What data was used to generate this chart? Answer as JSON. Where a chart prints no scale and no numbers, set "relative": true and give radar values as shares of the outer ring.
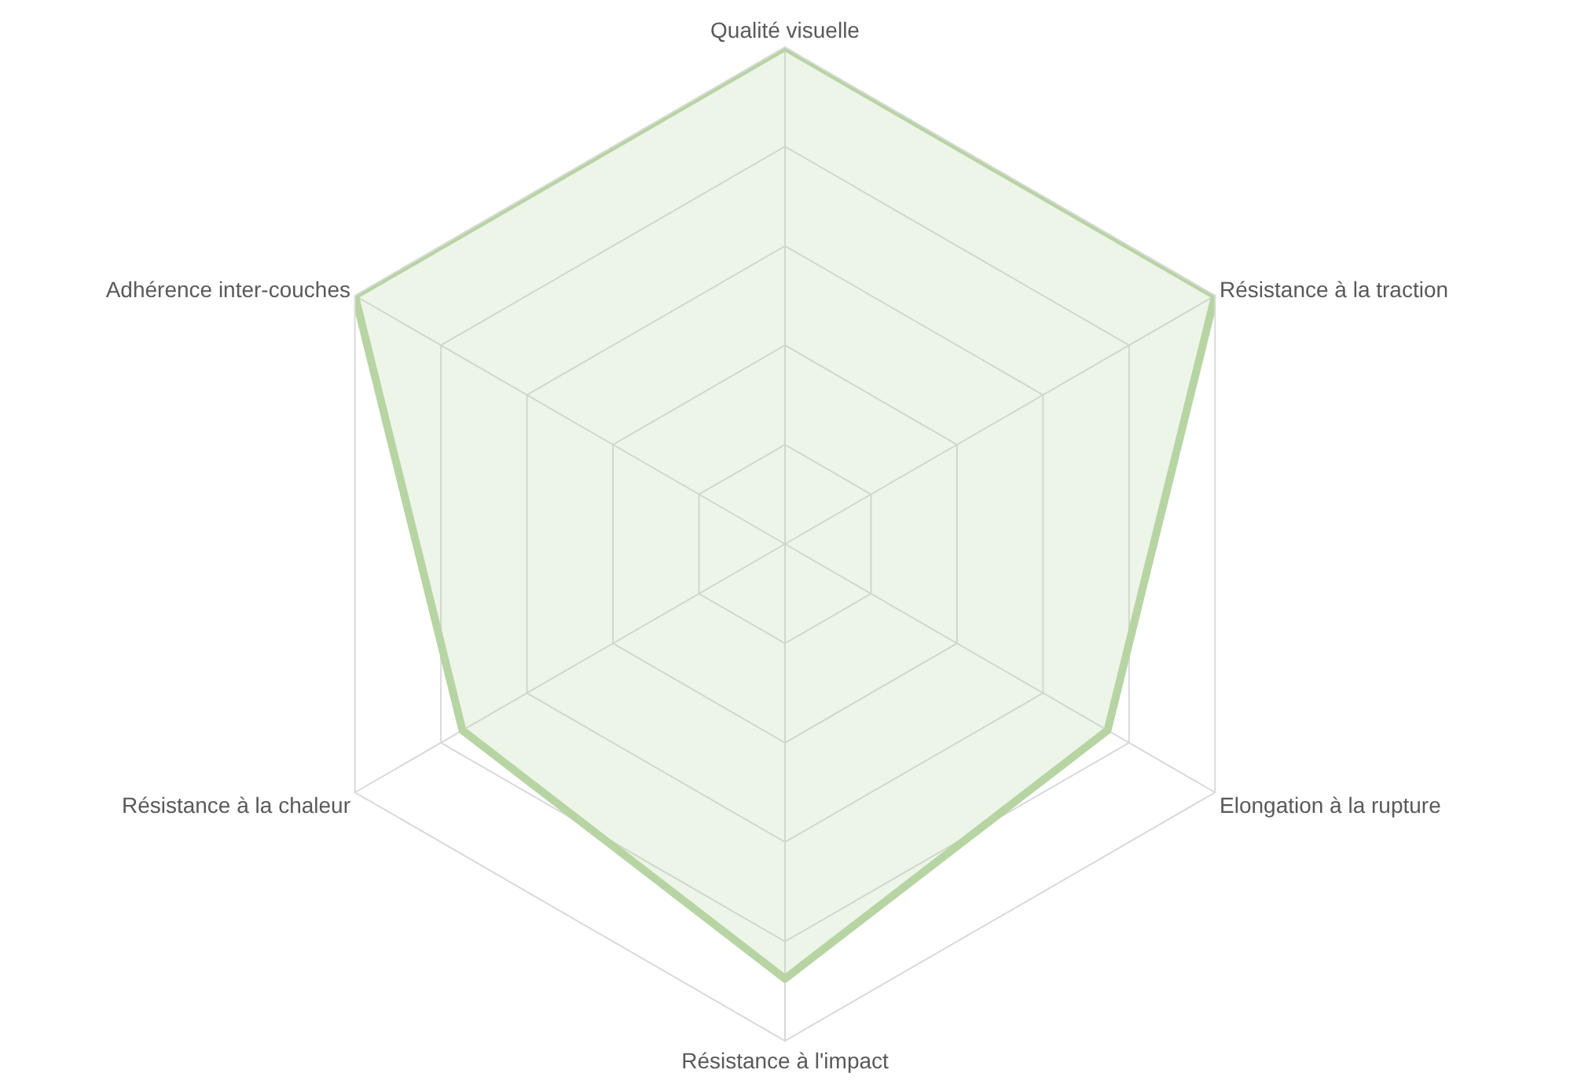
{
  "chart_data": {
    "type": "radar",
    "relative": true,
    "grid": true,
    "categories": [
      "Qualité visuelle",
      "Résistance à la traction",
      "Elongation à la rupture",
      "Résistance à l'impact",
      "Résistance à la chaleur",
      "Adhérence inter-couches"
    ],
    "series": [
      {
        "color": "#b7d4a3",
        "values": [
          1,
          1,
          0.75,
          0.875,
          0.75,
          1
        ]
      }
    ]
  }
}
